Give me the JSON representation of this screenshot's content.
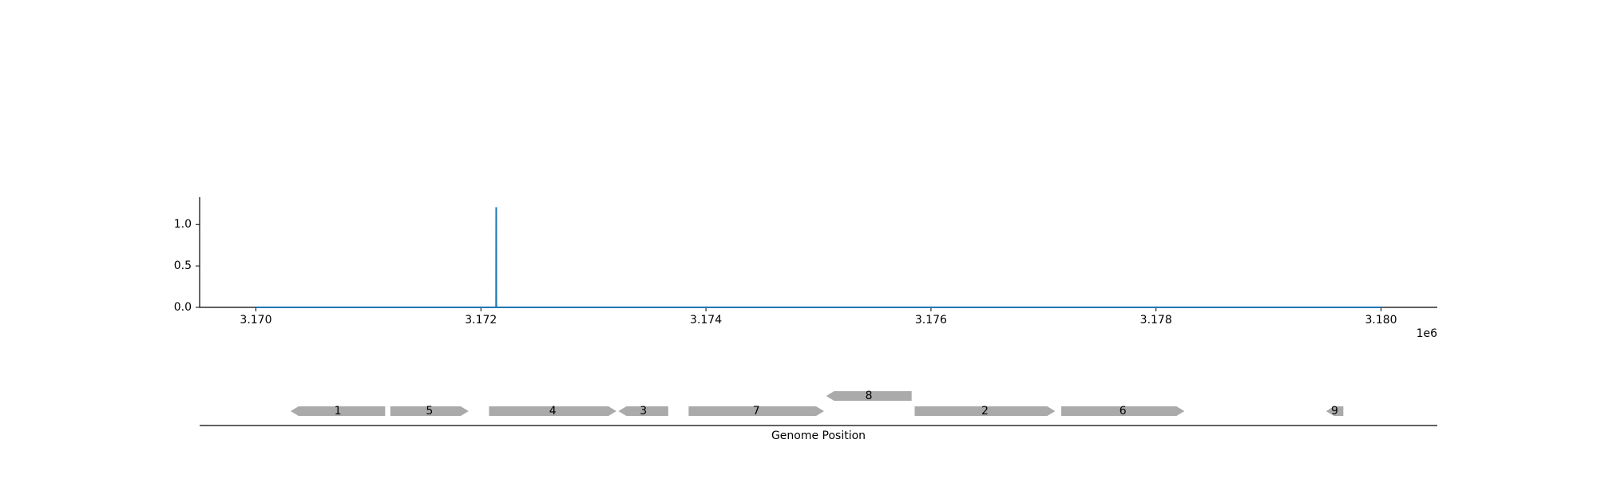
{
  "chart_data": [
    {
      "type": "line",
      "x": [
        3170000,
        3172135,
        3172136,
        3172137,
        3180000
      ],
      "series": [
        {
          "color": "#1f77b4",
          "values": [
            0,
            0,
            1.21,
            0,
            0
          ]
        }
      ],
      "xlim": [
        3169500,
        3180500
      ],
      "xticks": [
        {
          "value": 3170000,
          "label": "3.170"
        },
        {
          "value": 3172000,
          "label": "3.172"
        },
        {
          "value": 3174000,
          "label": "3.174"
        },
        {
          "value": 3176000,
          "label": "3.176"
        },
        {
          "value": 3178000,
          "label": "3.178"
        },
        {
          "value": 3180000,
          "label": "3.180"
        }
      ],
      "x_offset_label": "1e6",
      "ylim": [
        0,
        1.33
      ],
      "yticks": [
        {
          "value": 0,
          "label": "0.0"
        },
        {
          "value": 0.5,
          "label": "0.5"
        },
        {
          "value": 1,
          "label": "1.0"
        }
      ]
    },
    {
      "type": "genes",
      "xlabel": "Genome Position",
      "xlim": [
        3169500,
        3180500
      ],
      "color": "#aaaaaa",
      "features": [
        {
          "label": "1",
          "start": 3170308,
          "end": 3171149,
          "strand": -1
        },
        {
          "label": "5",
          "start": 3171195,
          "end": 3171891,
          "strand": 1
        },
        {
          "label": "4",
          "start": 3172072,
          "end": 3173204,
          "strand": 1
        },
        {
          "label": "3",
          "start": 3173222,
          "end": 3173665,
          "strand": -1
        },
        {
          "label": "7",
          "start": 3173846,
          "end": 3175050,
          "strand": 1
        },
        {
          "label": "8",
          "start": 3175068,
          "end": 3175828,
          "strand": -1
        },
        {
          "label": "2",
          "start": 3175855,
          "end": 3177104,
          "strand": 1
        },
        {
          "label": "6",
          "start": 3177158,
          "end": 3178253,
          "strand": 1
        },
        {
          "label": "9",
          "start": 3179511,
          "end": 3179665,
          "strand": -1
        }
      ]
    }
  ]
}
